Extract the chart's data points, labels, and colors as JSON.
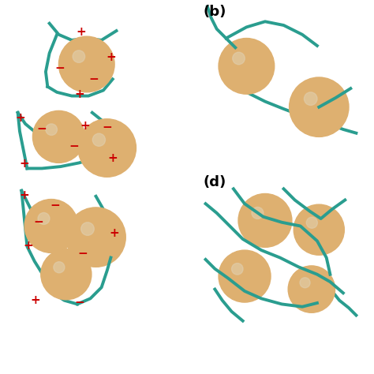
{
  "bg": "#ffffff",
  "teal": "#2a9d8f",
  "plus_color": "#cc0000",
  "minus_color": "#cc0000",
  "label_fontsize": 13,
  "charge_fontsize": 11,
  "lw": 2.8,
  "b_label": "(b)",
  "d_label": "(d)"
}
